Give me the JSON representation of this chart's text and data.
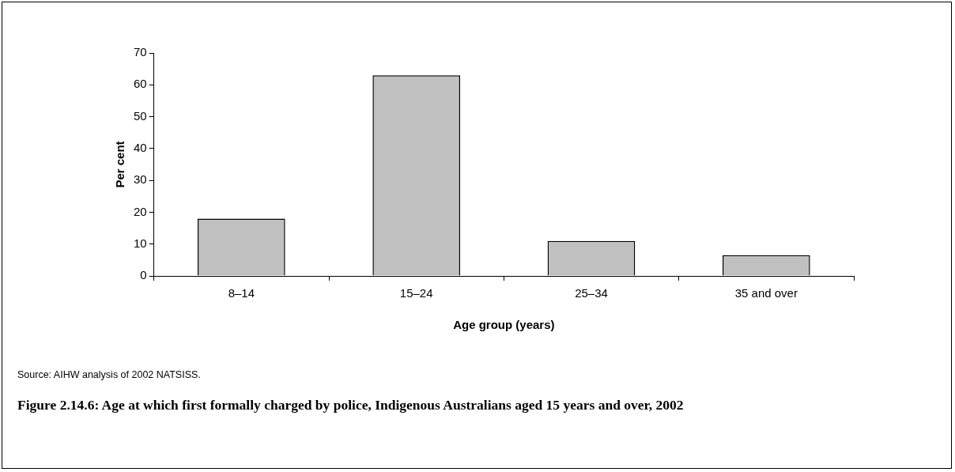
{
  "chart_data": {
    "type": "bar",
    "title": "Figure 2.14.6: Age at which first formally charged by police, Indigenous Australians aged 15 years and over, 2002",
    "xlabel": "Age group (years)",
    "ylabel": "Per cent",
    "annotations": [
      "Source: AIHW analysis of 2002 NATSISS."
    ],
    "categories": [
      "8–14",
      "15–24",
      "25–34",
      "35 and over"
    ],
    "values": [
      18,
      63,
      11,
      6.5
    ],
    "color": "#c0c0c0",
    "ylim": [
      0,
      70
    ],
    "yticks": [
      0,
      10,
      20,
      30,
      40,
      50,
      60,
      70
    ],
    "grid": false,
    "legend": false
  }
}
